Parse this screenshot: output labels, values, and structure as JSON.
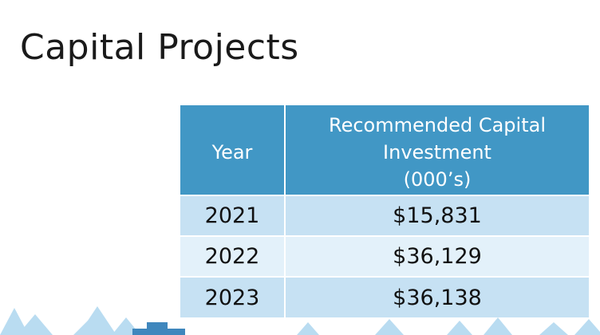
{
  "slide": {
    "title": "Capital Projects"
  },
  "table": {
    "headers": {
      "year": "Year",
      "investment_line1": "Recommended Capital",
      "investment_line2": "Investment",
      "investment_line3": "(000’s)"
    },
    "rows": [
      {
        "year": "2021",
        "investment": "$15,831"
      },
      {
        "year": "2022",
        "investment": "$36,129"
      },
      {
        "year": "2023",
        "investment": "$36,138"
      }
    ]
  },
  "colors": {
    "header_background": "#4197c5",
    "row_dark": "#c6e1f3",
    "row_light": "#e3f1fa",
    "decoration_trees": "#b9dcf1",
    "decoration_building": "#3f87bd"
  }
}
